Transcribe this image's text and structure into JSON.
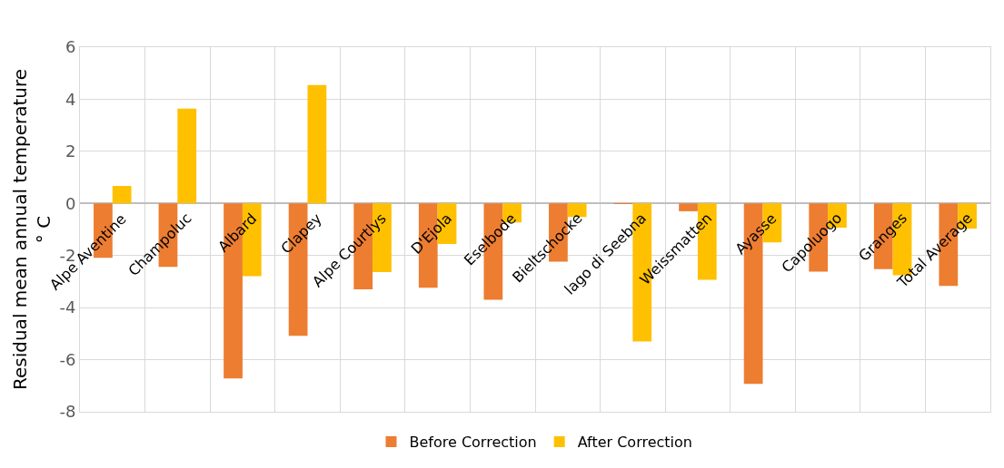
{
  "chart_data": {
    "type": "bar",
    "ylabel": "Residual mean annual temperature\n° C",
    "categories": [
      "Alpe Aventine",
      "Champoluc",
      "Albard",
      "Clapey",
      "Alpe Courtlys",
      "D'Ejola",
      "Eselbode",
      "Bieltschocke",
      "lago di Seebna",
      "Weissmatten",
      "Ayasse",
      "Capoluogo",
      "Granges",
      "Total Average"
    ],
    "series": [
      {
        "name": "Before Correction",
        "color": "#ed7d31",
        "values": [
          -2.09,
          -2.44,
          -6.72,
          -5.08,
          -3.3,
          -3.24,
          -3.7,
          -2.24,
          -0.02,
          -0.3,
          -6.93,
          -2.62,
          -2.52,
          -3.17
        ]
      },
      {
        "name": "After Correction",
        "color": "#ffc000",
        "values": [
          0.67,
          3.64,
          -2.79,
          4.55,
          -2.64,
          -1.56,
          -0.73,
          -0.52,
          -5.3,
          -2.93,
          -1.5,
          -0.93,
          -2.76,
          -0.97
        ]
      }
    ],
    "ylim": [
      -8,
      6
    ],
    "yticks": [
      -8,
      -6,
      -4,
      -2,
      0,
      2,
      4,
      6
    ],
    "grid": true,
    "legend": "bottom"
  }
}
